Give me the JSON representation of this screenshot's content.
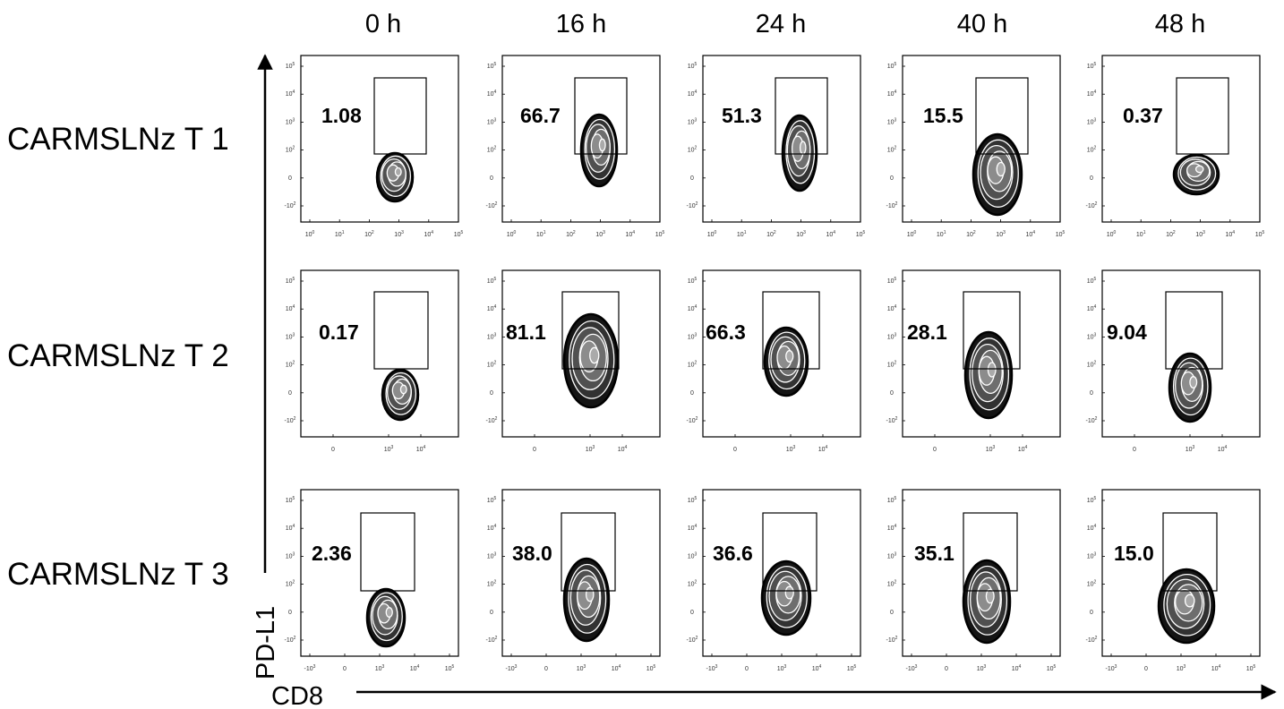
{
  "figure": {
    "column_headers": [
      "0 h",
      "16 h",
      "24 h",
      "40 h",
      "48 h"
    ],
    "row_headers": [
      "CARMSLNz T 1",
      "CARMSLNz T 2",
      "CARMSLNz T 3"
    ],
    "y_axis_label": "PD-L1",
    "x_axis_label": "CD8"
  },
  "chart_data": {
    "type": "contour-flow-cytometry-grid",
    "xlabel": "CD8",
    "ylabel": "PD-L1",
    "x_scale": "log",
    "y_scale": "log",
    "columns": [
      "0 h",
      "16 h",
      "24 h",
      "40 h",
      "48 h"
    ],
    "rows": [
      "CARMSLNz T 1",
      "CARMSLNz T 2",
      "CARMSLNz T 3"
    ],
    "gate_percentages": [
      [
        "1.08",
        "66.7",
        "51.3",
        "15.5",
        "0.37"
      ],
      [
        "0.17",
        "81.1",
        "66.3",
        "28.1",
        "9.04"
      ],
      [
        "2.36",
        "38.0",
        "36.6",
        "35.1",
        "15.0"
      ]
    ],
    "x_tick_labels": [
      [
        "10^0",
        "10^1",
        "10^2",
        "10^3",
        "10^4",
        "10^5"
      ],
      [
        "0",
        "10^3",
        "10^4"
      ],
      [
        "-10^3",
        "0",
        "10^3",
        "10^4",
        "10^5"
      ]
    ],
    "y_tick_labels": [
      "-10^2",
      "0",
      "10^2",
      "10^3",
      "10^4",
      "10^5"
    ]
  }
}
